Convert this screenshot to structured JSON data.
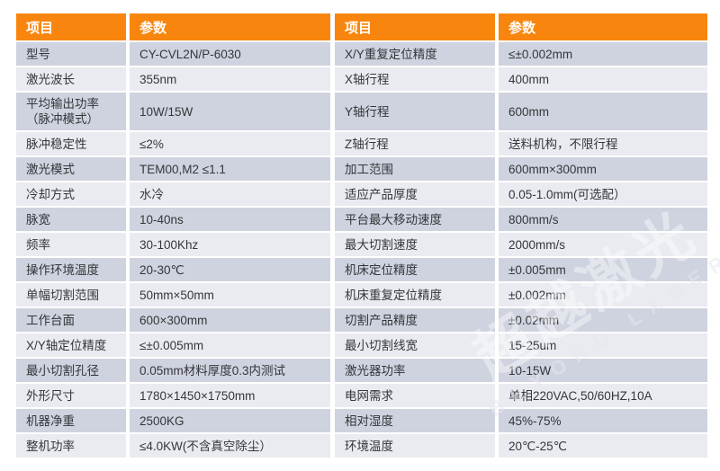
{
  "colors": {
    "header_bg": "#F8860E",
    "header_text": "#ffffff",
    "row_dark": "#CFD3DF",
    "row_light": "#E9EBF0",
    "cell_text": "#35363a"
  },
  "watermark": {
    "text_cn": "超越激光",
    "text_en": "BEYOND LASER"
  },
  "tables": [
    {
      "headers": {
        "item": "项目",
        "param": "参数"
      },
      "rows": [
        {
          "label": "型号",
          "value": "CY-CVL2N/P-6030"
        },
        {
          "label": "激光波长",
          "value": "355nm"
        },
        {
          "label": "平均输出功率\n（脉冲模式）",
          "value": "10W/15W",
          "tall": true
        },
        {
          "label": "脉冲稳定性",
          "value": "≤2%"
        },
        {
          "label": "激光模式",
          "value": "TEM00,M2 ≤1.1"
        },
        {
          "label": "冷却方式",
          "value": "水冷"
        },
        {
          "label": "脉宽",
          "value": "10-40ns"
        },
        {
          "label": "频率",
          "value": "30-100Khz"
        },
        {
          "label": "操作环境温度",
          "value": "20-30℃"
        },
        {
          "label": "单幅切割范围",
          "value": "50mm×50mm"
        },
        {
          "label": "工作台面",
          "value": "600×300mm"
        },
        {
          "label": "X/Y轴定位精度",
          "value": "≤±0.005mm"
        },
        {
          "label": "最小切割孔径",
          "value": "0.05mm材料厚度0.3内测试"
        },
        {
          "label": "外形尺寸",
          "value": "1780×1450×1750mm"
        },
        {
          "label": "机器净重",
          "value": "2500KG"
        },
        {
          "label": "整机功率",
          "value": "≤4.0KW(不含真空除尘）"
        }
      ]
    },
    {
      "headers": {
        "item": "项目",
        "param": "参数"
      },
      "rows": [
        {
          "label": "X/Y重复定位精度",
          "value": "≤±0.002mm"
        },
        {
          "label": "X轴行程",
          "value": "400mm"
        },
        {
          "label": "Y轴行程",
          "value": "600mm",
          "tall": true
        },
        {
          "label": "Z轴行程",
          "value": "送料机构，不限行程"
        },
        {
          "label": "加工范围",
          "value": "600mm×300mm"
        },
        {
          "label": "适应产品厚度",
          "value": "0.05-1.0mm(可选配）"
        },
        {
          "label": "平台最大移动速度",
          "value": "800mm/s"
        },
        {
          "label": "最大切割速度",
          "value": "2000mm/s"
        },
        {
          "label": "机床定位精度",
          "value": "±0.005mm"
        },
        {
          "label": "机床重复定位精度",
          "value": "±0.002mm"
        },
        {
          "label": "切割产品精度",
          "value": "±0.02mm"
        },
        {
          "label": "最小切割线宽",
          "value": "15-25um"
        },
        {
          "label": "激光器功率",
          "value": "10-15W"
        },
        {
          "label": "电网需求",
          "value": "单相220VAC,50/60HZ,10A"
        },
        {
          "label": "相对湿度",
          "value": "45%-75%"
        },
        {
          "label": "环境温度",
          "value": "20℃-25℃"
        }
      ]
    }
  ]
}
